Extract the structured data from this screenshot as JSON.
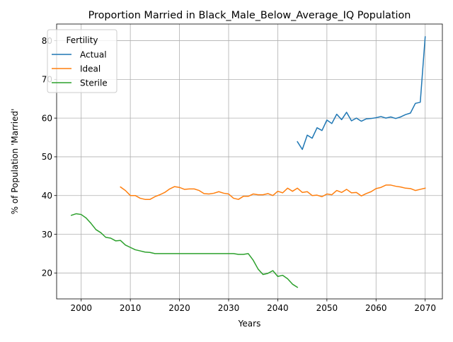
{
  "chart_data": {
    "type": "line",
    "title": "Proportion Married in Black_Male_Below_Average_IQ Population",
    "xlabel": "Years",
    "ylabel": "% of Population 'Married'",
    "xlim": [
      1995,
      2073.5
    ],
    "ylim": [
      13.3,
      84.3
    ],
    "xticks": [
      2000,
      2010,
      2020,
      2030,
      2040,
      2050,
      2060,
      2070
    ],
    "yticks": [
      20,
      30,
      40,
      50,
      60,
      70,
      80
    ],
    "grid": true,
    "legend": {
      "title": "Fertility",
      "position": "top-left"
    },
    "series": [
      {
        "name": "Actual",
        "color": "#1f77b4",
        "points": [
          [
            2044,
            53.9
          ],
          [
            2045,
            51.9
          ],
          [
            2046,
            55.6
          ],
          [
            2047,
            54.8
          ],
          [
            2048,
            57.5
          ],
          [
            2049,
            56.8
          ],
          [
            2050,
            59.5
          ],
          [
            2051,
            58.6
          ],
          [
            2052,
            61.0
          ],
          [
            2053,
            59.6
          ],
          [
            2054,
            61.5
          ],
          [
            2055,
            59.3
          ],
          [
            2056,
            60.0
          ],
          [
            2057,
            59.2
          ],
          [
            2058,
            59.8
          ],
          [
            2059,
            59.9
          ],
          [
            2060,
            60.1
          ],
          [
            2061,
            60.4
          ],
          [
            2062,
            60.0
          ],
          [
            2063,
            60.3
          ],
          [
            2064,
            59.9
          ],
          [
            2065,
            60.3
          ],
          [
            2066,
            60.9
          ],
          [
            2067,
            61.3
          ],
          [
            2068,
            63.8
          ],
          [
            2069,
            64.1
          ],
          [
            2070,
            81.0
          ]
        ]
      },
      {
        "name": "Ideal",
        "color": "#ff7f0e",
        "points": [
          [
            2008,
            42.2
          ],
          [
            2009,
            41.3
          ],
          [
            2010,
            40.0
          ],
          [
            2011,
            40.0
          ],
          [
            2012,
            39.3
          ],
          [
            2013,
            39.0
          ],
          [
            2014,
            39.0
          ],
          [
            2015,
            39.7
          ],
          [
            2016,
            40.2
          ],
          [
            2017,
            40.8
          ],
          [
            2018,
            41.7
          ],
          [
            2019,
            42.3
          ],
          [
            2020,
            42.1
          ],
          [
            2021,
            41.6
          ],
          [
            2022,
            41.7
          ],
          [
            2023,
            41.7
          ],
          [
            2024,
            41.3
          ],
          [
            2025,
            40.5
          ],
          [
            2026,
            40.4
          ],
          [
            2027,
            40.6
          ],
          [
            2028,
            41.0
          ],
          [
            2029,
            40.6
          ],
          [
            2030,
            40.4
          ],
          [
            2031,
            39.3
          ],
          [
            2032,
            39.0
          ],
          [
            2033,
            39.8
          ],
          [
            2034,
            39.8
          ],
          [
            2035,
            40.4
          ],
          [
            2036,
            40.2
          ],
          [
            2037,
            40.2
          ],
          [
            2038,
            40.5
          ],
          [
            2039,
            40.0
          ],
          [
            2040,
            41.1
          ],
          [
            2041,
            40.7
          ],
          [
            2042,
            41.9
          ],
          [
            2043,
            41.1
          ],
          [
            2044,
            41.9
          ],
          [
            2045,
            40.8
          ],
          [
            2046,
            41.0
          ],
          [
            2047,
            40.0
          ],
          [
            2048,
            40.1
          ],
          [
            2049,
            39.7
          ],
          [
            2050,
            40.4
          ],
          [
            2051,
            40.2
          ],
          [
            2052,
            41.3
          ],
          [
            2053,
            40.8
          ],
          [
            2054,
            41.6
          ],
          [
            2055,
            40.7
          ],
          [
            2056,
            40.8
          ],
          [
            2057,
            39.9
          ],
          [
            2058,
            40.5
          ],
          [
            2059,
            41.0
          ],
          [
            2060,
            41.8
          ],
          [
            2061,
            42.1
          ],
          [
            2062,
            42.7
          ],
          [
            2063,
            42.7
          ],
          [
            2064,
            42.4
          ],
          [
            2065,
            42.2
          ],
          [
            2066,
            41.9
          ],
          [
            2067,
            41.8
          ],
          [
            2068,
            41.3
          ],
          [
            2069,
            41.6
          ],
          [
            2070,
            41.9
          ]
        ]
      },
      {
        "name": "Sterile",
        "color": "#2ca02c",
        "points": [
          [
            1998,
            34.9
          ],
          [
            1999,
            35.3
          ],
          [
            2000,
            35.1
          ],
          [
            2001,
            34.2
          ],
          [
            2002,
            32.8
          ],
          [
            2003,
            31.2
          ],
          [
            2004,
            30.4
          ],
          [
            2005,
            29.2
          ],
          [
            2006,
            29.0
          ],
          [
            2007,
            28.3
          ],
          [
            2008,
            28.4
          ],
          [
            2009,
            27.2
          ],
          [
            2010,
            26.6
          ],
          [
            2011,
            26.0
          ],
          [
            2012,
            25.7
          ],
          [
            2013,
            25.4
          ],
          [
            2014,
            25.3
          ],
          [
            2015,
            25.0
          ],
          [
            2016,
            25.0
          ],
          [
            2017,
            25.0
          ],
          [
            2018,
            25.0
          ],
          [
            2019,
            25.0
          ],
          [
            2020,
            25.0
          ],
          [
            2021,
            25.0
          ],
          [
            2022,
            25.0
          ],
          [
            2023,
            25.0
          ],
          [
            2024,
            25.0
          ],
          [
            2025,
            25.0
          ],
          [
            2026,
            25.0
          ],
          [
            2027,
            25.0
          ],
          [
            2028,
            25.0
          ],
          [
            2029,
            25.0
          ],
          [
            2030,
            25.0
          ],
          [
            2031,
            25.0
          ],
          [
            2032,
            24.8
          ],
          [
            2033,
            24.8
          ],
          [
            2034,
            25.0
          ],
          [
            2035,
            23.3
          ],
          [
            2036,
            21.0
          ],
          [
            2037,
            19.6
          ],
          [
            2038,
            19.9
          ],
          [
            2039,
            20.6
          ],
          [
            2040,
            19.1
          ],
          [
            2041,
            19.4
          ],
          [
            2042,
            18.5
          ],
          [
            2043,
            17.1
          ],
          [
            2044,
            16.3
          ]
        ]
      }
    ]
  }
}
